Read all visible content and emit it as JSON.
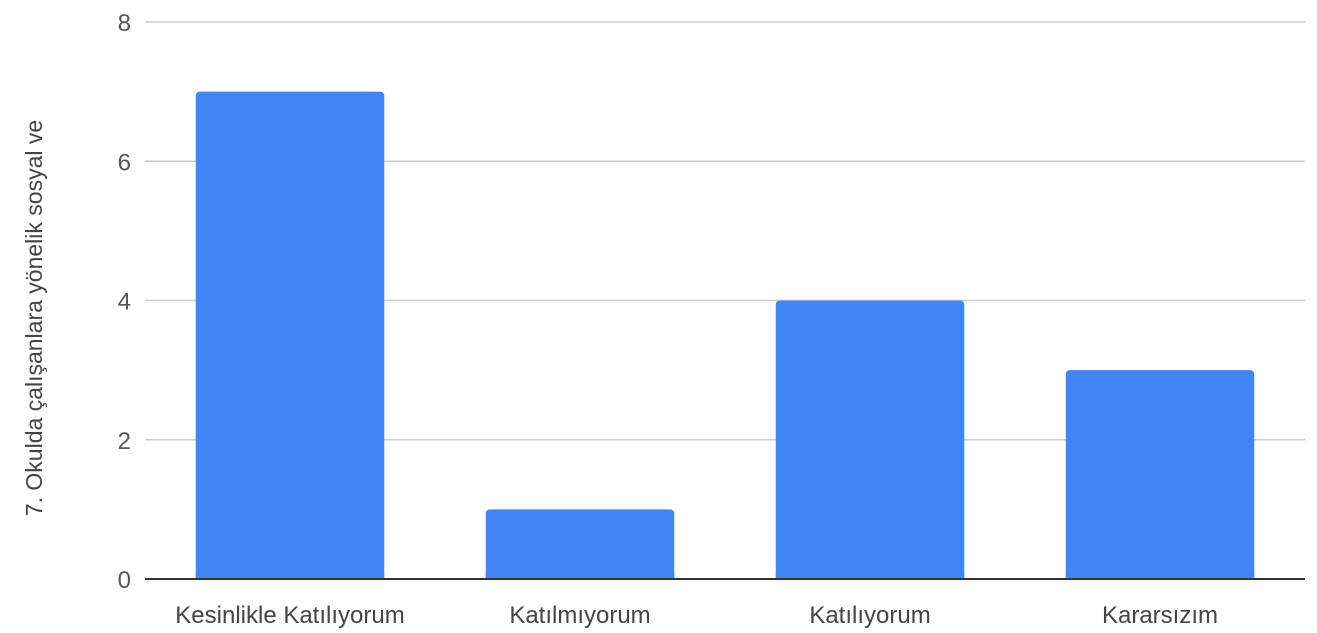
{
  "chart_data": {
    "type": "bar",
    "title": "",
    "xlabel": "",
    "ylabel": "7. Okulda çalışanlara yönelik sosyal ve",
    "categories": [
      "Kesinlikle Katılıyorum",
      "Katılmıyorum",
      "Katılıyorum",
      "Kararsızım"
    ],
    "values": [
      7,
      1,
      4,
      3
    ],
    "ylim": [
      0,
      8
    ],
    "yticks": [
      "0",
      "2",
      "4",
      "6",
      "8"
    ],
    "grid": true,
    "legend": "none",
    "bar_color": "#4285f4",
    "grid_color": "#cccccc",
    "axis_color": "#333333"
  }
}
